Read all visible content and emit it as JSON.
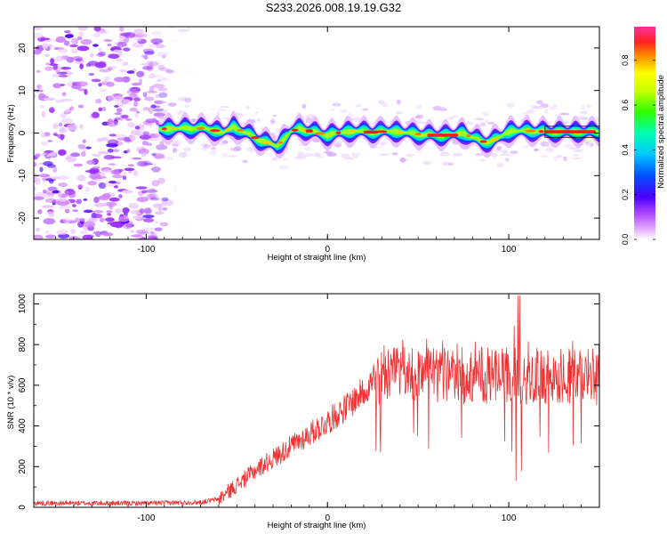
{
  "title": "S233.2026.008.19.19.G32",
  "chart_data": [
    {
      "type": "heatmap",
      "name": "spectrogram",
      "xlabel": "Height of straight line (km)",
      "ylabel": "Frequency (Hz)",
      "xlim": [
        -162,
        150
      ],
      "ylim": [
        -25,
        25
      ],
      "xticks": [
        -100,
        0,
        100
      ],
      "yticks": [
        -20,
        -10,
        0,
        10,
        20
      ],
      "noise_region_x": [
        -162,
        -90
      ],
      "signal_start_x": -93,
      "ridge": {
        "x": [
          -93,
          -85,
          -75,
          -65,
          -58,
          -52,
          -45,
          -38,
          -32,
          -28,
          -24,
          -20,
          -15,
          -10,
          -5,
          0,
          5,
          15,
          25,
          35,
          45,
          55,
          65,
          75,
          80,
          85,
          90,
          95,
          98,
          102,
          108,
          115,
          120,
          130,
          140,
          150
        ],
        "y": [
          1,
          1,
          1.2,
          1,
          0,
          1.5,
          0,
          -1.5,
          -2.5,
          -3,
          -1.5,
          0.5,
          1,
          0.5,
          0,
          -0.5,
          0,
          0.5,
          0.2,
          0.5,
          0,
          -0.5,
          -0.5,
          0,
          -1,
          -2,
          -2,
          -1,
          0,
          0.5,
          0.5,
          0.5,
          0.3,
          0.3,
          0.3,
          0.3
        ]
      },
      "colorbar": {
        "label": "Normalized spectral amplitude",
        "ticks": [
          "0.0",
          "0.2",
          "0.4",
          "0.6",
          "0.8"
        ],
        "range": [
          0,
          0.95
        ]
      }
    },
    {
      "type": "line",
      "name": "snr",
      "xlabel": "Height of straight line (km)",
      "ylabel": "SNR (10 * v/v)",
      "xlim": [
        -162,
        150
      ],
      "ylim": [
        0,
        1050
      ],
      "xticks": [
        -100,
        0,
        100
      ],
      "yticks": [
        0,
        200,
        400,
        600,
        800,
        1000
      ],
      "color": "#ee3030",
      "trend": {
        "x": [
          -162,
          -100,
          -70,
          -60,
          -50,
          -40,
          -30,
          -20,
          -10,
          0,
          10,
          20,
          25,
          30,
          150
        ],
        "y": [
          20,
          20,
          25,
          40,
          110,
          180,
          240,
          300,
          360,
          420,
          490,
          570,
          620,
          650,
          640
        ]
      },
      "spikes": [
        {
          "x": 103,
          "y": 890
        },
        {
          "x": 105,
          "y": 1040
        },
        {
          "x": 106,
          "y": 1040
        },
        {
          "x": 104,
          "y": 130
        },
        {
          "x": 107,
          "y": 180
        }
      ]
    }
  ]
}
